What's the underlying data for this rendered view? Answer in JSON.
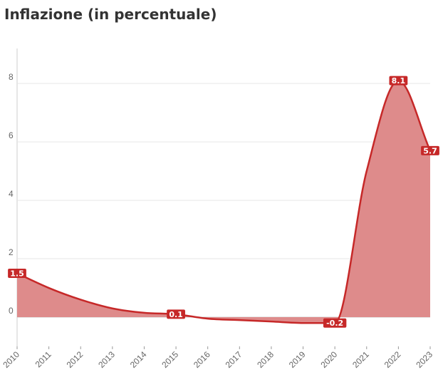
{
  "title": "Inflazione (in percentuale)",
  "chart_data": {
    "type": "area",
    "title": "Inflazione (in percentuale)",
    "xlabel": "",
    "ylabel": "",
    "x": [
      "2010",
      "2011",
      "2012",
      "2013",
      "2014",
      "2015",
      "2016",
      "2017",
      "2018",
      "2019",
      "2020",
      "2021",
      "2022",
      "2023"
    ],
    "series": [
      {
        "values": [
          1.5,
          1.0,
          0.6,
          0.3,
          0.15,
          0.1,
          -0.05,
          -0.1,
          -0.15,
          -0.2,
          -0.2,
          5.0,
          8.1,
          5.7
        ],
        "color": "#c62828",
        "fill": "#de8b8b"
      }
    ],
    "data_labels": [
      {
        "x": "2010",
        "y": 1.5,
        "text": "1.5"
      },
      {
        "x": "2015",
        "y": 0.1,
        "text": "0.1"
      },
      {
        "x": "2020",
        "y": -0.2,
        "text": "-0.2"
      },
      {
        "x": "2022",
        "y": 8.1,
        "text": "8.1"
      },
      {
        "x": "2023",
        "y": 5.7,
        "text": "5.7"
      }
    ],
    "yticks": [
      0,
      2,
      4,
      6,
      8
    ],
    "ylim": [
      -1,
      9.2
    ],
    "grid": true
  }
}
